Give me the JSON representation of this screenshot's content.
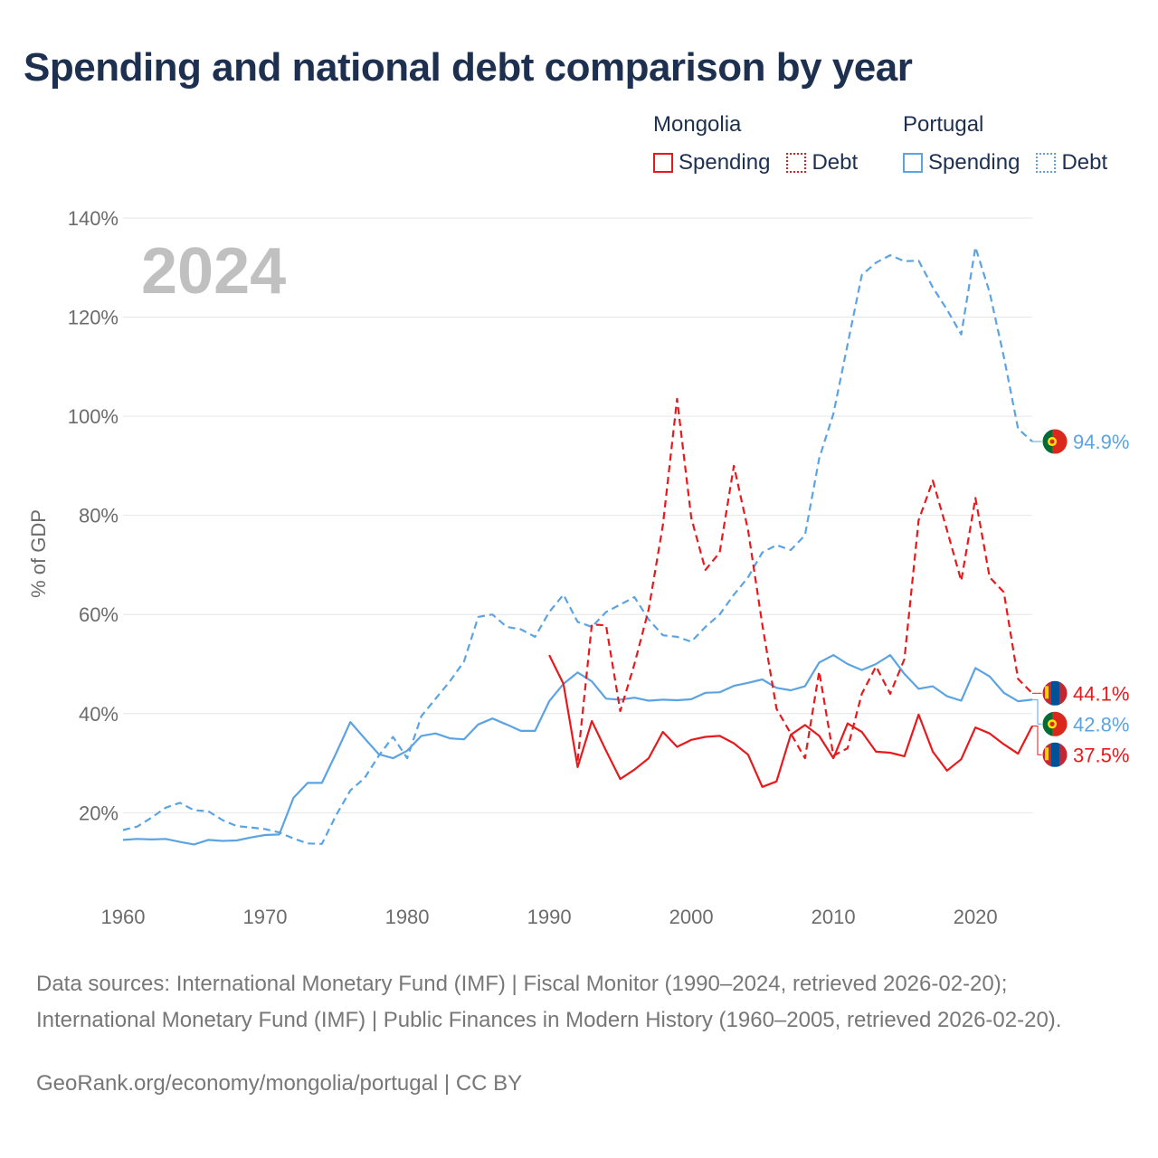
{
  "title": "Spending and national debt comparison by year",
  "legend": {
    "groups": [
      {
        "name": "Mongolia",
        "items": [
          {
            "label": "Spending",
            "style": "solid",
            "color": "#e8191c"
          },
          {
            "label": "Debt",
            "style": "dotted",
            "color": "#e8191c"
          }
        ]
      },
      {
        "name": "Portugal",
        "items": [
          {
            "label": "Spending",
            "style": "solid",
            "color": "#5ba3e2"
          },
          {
            "label": "Debt",
            "style": "dotted",
            "color": "#5ba3e2"
          }
        ]
      }
    ]
  },
  "chart_data": {
    "type": "line",
    "year_label": "2024",
    "ylabel": "% of GDP",
    "xlim": [
      1960,
      2024
    ],
    "ylim": [
      6,
      140
    ],
    "x_ticks": [
      1960,
      1970,
      1980,
      1990,
      2000,
      2010,
      2020
    ],
    "y_ticks": [
      20,
      40,
      60,
      80,
      100,
      120,
      140
    ],
    "y_tick_labels": [
      "20%",
      "40%",
      "60%",
      "80%",
      "100%",
      "120%",
      "140%"
    ],
    "series": [
      {
        "name": "Portugal Debt",
        "country": "Portugal",
        "measure": "Debt",
        "color": "#5ba3e2",
        "dash": "8 5",
        "end_label": "94.9%",
        "x": [
          1960,
          1961,
          1962,
          1963,
          1964,
          1965,
          1966,
          1967,
          1968,
          1969,
          1970,
          1971,
          1972,
          1973,
          1974,
          1975,
          1976,
          1977,
          1978,
          1979,
          1980,
          1981,
          1982,
          1983,
          1984,
          1985,
          1986,
          1987,
          1988,
          1989,
          1990,
          1991,
          1992,
          1993,
          1994,
          1995,
          1996,
          1997,
          1998,
          1999,
          2000,
          2001,
          2002,
          2003,
          2004,
          2005,
          2006,
          2007,
          2008,
          2009,
          2010,
          2011,
          2012,
          2013,
          2014,
          2015,
          2016,
          2017,
          2018,
          2019,
          2020,
          2021,
          2022,
          2023,
          2024
        ],
        "values": [
          16.5,
          17.2,
          19.0,
          21.0,
          22.0,
          20.5,
          20.3,
          18.5,
          17.3,
          17.0,
          16.7,
          16.0,
          14.8,
          13.8,
          13.7,
          19.5,
          24.5,
          27.0,
          31.5,
          35.3,
          31.0,
          39.5,
          43.0,
          46.5,
          50.5,
          59.5,
          60.0,
          57.5,
          57.0,
          55.5,
          60.5,
          64.0,
          58.5,
          57.5,
          60.5,
          62.0,
          63.5,
          59.0,
          55.8,
          55.5,
          54.5,
          57.5,
          60.0,
          64.0,
          67.5,
          72.5,
          74.0,
          73.0,
          76.0,
          91.5,
          100.5,
          114.5,
          128.5,
          131.0,
          132.5,
          131.3,
          131.4,
          126.0,
          121.5,
          116.5,
          134.1,
          125.0,
          112.0,
          97.5,
          94.9
        ]
      },
      {
        "name": "Portugal Spending",
        "country": "Portugal",
        "measure": "Spending",
        "color": "#5ba3e2",
        "dash": "",
        "end_label": "42.8%",
        "x": [
          1960,
          1961,
          1962,
          1963,
          1964,
          1965,
          1966,
          1967,
          1968,
          1969,
          1970,
          1971,
          1972,
          1973,
          1974,
          1975,
          1976,
          1977,
          1978,
          1979,
          1980,
          1981,
          1982,
          1983,
          1984,
          1985,
          1986,
          1987,
          1988,
          1989,
          1990,
          1991,
          1992,
          1993,
          1994,
          1995,
          1996,
          1997,
          1998,
          1999,
          2000,
          2001,
          2002,
          2003,
          2004,
          2005,
          2006,
          2007,
          2008,
          2009,
          2010,
          2011,
          2012,
          2013,
          2014,
          2015,
          2016,
          2017,
          2018,
          2019,
          2020,
          2021,
          2022,
          2023,
          2024
        ],
        "values": [
          14.5,
          14.7,
          14.6,
          14.7,
          14.1,
          13.6,
          14.5,
          14.3,
          14.4,
          15.0,
          15.5,
          15.6,
          23.0,
          26.0,
          26.0,
          32.0,
          38.3,
          35.0,
          31.8,
          31.0,
          32.5,
          35.5,
          36.0,
          35.0,
          34.8,
          37.8,
          39.0,
          37.8,
          36.5,
          36.5,
          42.5,
          46.0,
          48.3,
          46.5,
          43.0,
          42.8,
          43.2,
          42.6,
          42.8,
          42.7,
          42.9,
          44.2,
          44.3,
          45.6,
          46.2,
          46.9,
          45.2,
          44.7,
          45.5,
          50.3,
          51.8,
          50.0,
          48.8,
          50.0,
          51.8,
          48.0,
          45.0,
          45.5,
          43.5,
          42.6,
          49.2,
          47.5,
          44.2,
          42.5,
          42.8
        ]
      },
      {
        "name": "Mongolia Debt",
        "country": "Mongolia",
        "measure": "Debt",
        "color": "#e8191c",
        "dash": "8 5",
        "end_label": "44.1%",
        "x": [
          1992,
          1993,
          1994,
          1995,
          1996,
          1997,
          1998,
          1999,
          2000,
          2001,
          2002,
          2003,
          2004,
          2005,
          2006,
          2007,
          2008,
          2009,
          2010,
          2011,
          2012,
          2013,
          2014,
          2015,
          2016,
          2017,
          2018,
          2019,
          2020,
          2021,
          2022,
          2023,
          2024
        ],
        "values": [
          30.5,
          58.0,
          57.8,
          40.5,
          50.0,
          61.0,
          78.0,
          103.5,
          79.5,
          69.0,
          72.5,
          90.0,
          77.0,
          58.0,
          41.0,
          36.0,
          31.0,
          48.5,
          31.5,
          33.0,
          44.0,
          49.5,
          44.0,
          51.0,
          79.0,
          87.0,
          77.0,
          66.8,
          83.5,
          67.5,
          64.5,
          47.0,
          44.1
        ]
      },
      {
        "name": "Mongolia Spending",
        "country": "Mongolia",
        "measure": "Spending",
        "color": "#e8191c",
        "dash": "",
        "end_label": "37.5%",
        "x": [
          1990,
          1991,
          1992,
          1993,
          1994,
          1995,
          1996,
          1997,
          1998,
          1999,
          2000,
          2001,
          2002,
          2003,
          2004,
          2005,
          2006,
          2007,
          2008,
          2009,
          2010,
          2011,
          2012,
          2013,
          2014,
          2015,
          2016,
          2017,
          2018,
          2019,
          2020,
          2021,
          2022,
          2023,
          2024
        ],
        "values": [
          51.8,
          46.0,
          29.2,
          38.5,
          32.5,
          26.8,
          28.7,
          31.0,
          36.3,
          33.3,
          34.7,
          35.3,
          35.5,
          34.0,
          31.7,
          25.2,
          26.3,
          35.7,
          37.7,
          35.5,
          31.0,
          38.0,
          36.3,
          32.3,
          32.1,
          31.4,
          39.8,
          32.3,
          28.5,
          30.8,
          37.2,
          36.0,
          33.8,
          31.9,
          37.5
        ]
      }
    ]
  },
  "footer": {
    "sources": "Data sources: International Monetary Fund (IMF) | Fiscal Monitor (1990–2024, retrieved 2026-02-20); International Monetary Fund (IMF) | Public Finances in Modern History (1960–2005, retrieved 2026-02-20).",
    "credit": "GeoRank.org/economy/mongolia/portugal | CC BY"
  }
}
